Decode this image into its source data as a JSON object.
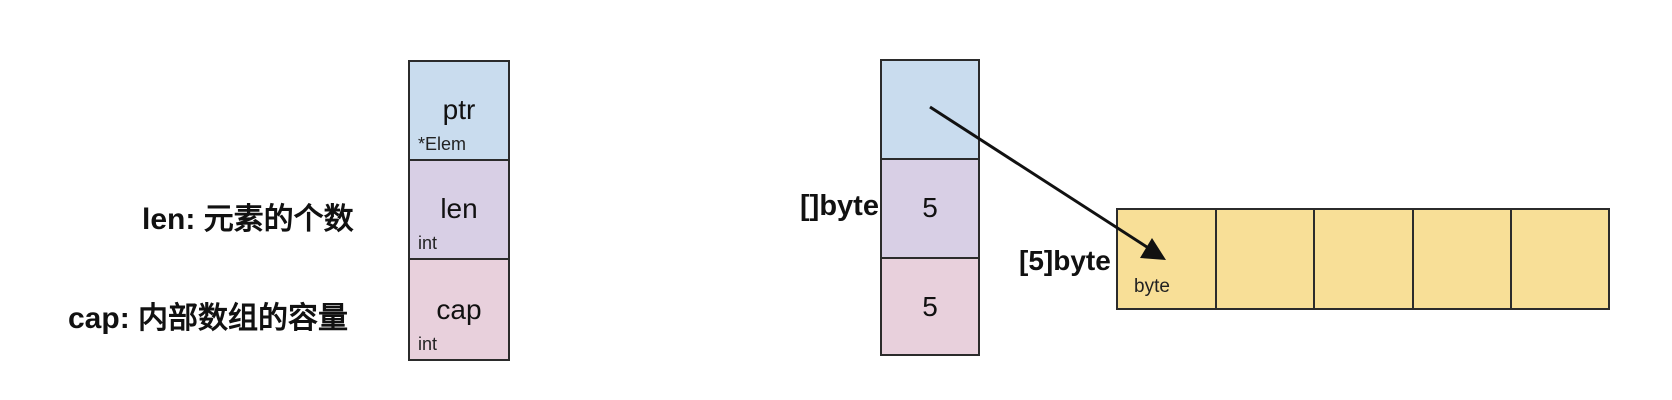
{
  "left_struct": {
    "cells": [
      {
        "name": "ptr",
        "type": "*Elem",
        "color": "#c9dcee"
      },
      {
        "name": "len",
        "type": "int",
        "color": "#d8cfe5"
      },
      {
        "name": "cap",
        "type": "int",
        "color": "#e8d0dc"
      }
    ],
    "annotations": {
      "len": {
        "key": "len:",
        "desc": "元素的个数"
      },
      "cap": {
        "key": "cap:",
        "desc": "内部数组的容量"
      }
    }
  },
  "slice_example": {
    "label": "[]byte",
    "cells": [
      {
        "value": "",
        "color": "#c9dcee"
      },
      {
        "value": "5",
        "color": "#d8cfe5"
      },
      {
        "value": "5",
        "color": "#e8d0dc"
      }
    ]
  },
  "array_example": {
    "label": "[5]byte",
    "element_type": "byte",
    "cell_count": 5,
    "color": "#f8df97"
  },
  "colors": {
    "border": "#2b2b2b",
    "arrow": "#111111"
  }
}
